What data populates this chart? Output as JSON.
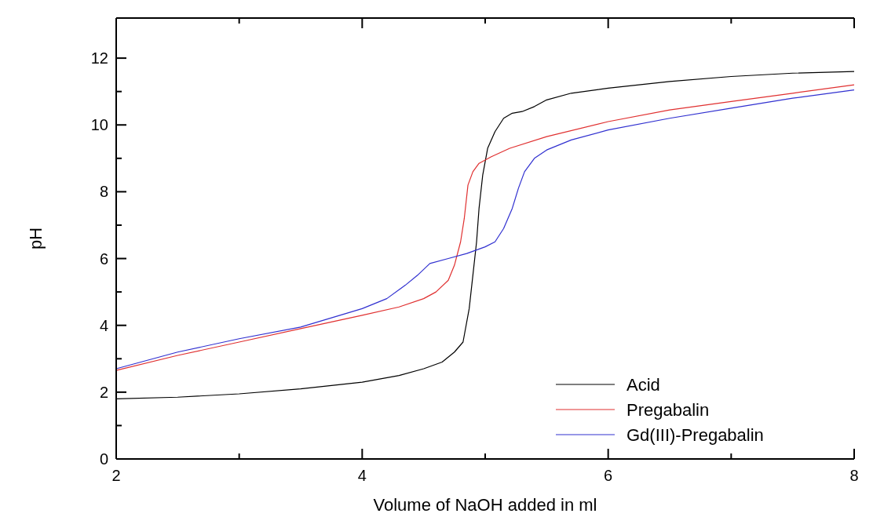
{
  "chart_data": {
    "type": "line",
    "xlabel": "Volume of NaOH added in ml",
    "ylabel": "pH",
    "xlim": [
      2,
      8
    ],
    "ylim": [
      0,
      13.2
    ],
    "xticks": [
      2,
      {
        "value": 3,
        "label": null
      },
      4,
      {
        "value": 5,
        "label": null
      },
      6,
      {
        "value": 7,
        "label": null
      },
      8
    ],
    "yticks": [
      0,
      {
        "value": 1,
        "label": null
      },
      2,
      {
        "value": 3,
        "label": null
      },
      4,
      {
        "value": 5,
        "label": null
      },
      6,
      {
        "value": 7,
        "label": null
      },
      8,
      {
        "value": 9,
        "label": null
      },
      10,
      {
        "value": 11,
        "label": null
      },
      12
    ],
    "grid": false,
    "legend": "bottom right",
    "marker": "none",
    "line_style": "solid",
    "series": [
      {
        "name": "Acid",
        "color": "#000000",
        "x": [
          2,
          2.5,
          3,
          3.5,
          4,
          4.3,
          4.5,
          4.65,
          4.75,
          4.82,
          4.87,
          4.9,
          4.93,
          4.95,
          4.98,
          5.02,
          5.08,
          5.15,
          5.22,
          5.3,
          5.4,
          5.5,
          5.7,
          6,
          6.5,
          7,
          7.5,
          8
        ],
        "values": [
          1.8,
          1.85,
          1.95,
          2.1,
          2.3,
          2.5,
          2.7,
          2.9,
          3.2,
          3.5,
          4.5,
          5.5,
          6.5,
          7.5,
          8.5,
          9.3,
          9.8,
          10.2,
          10.35,
          10.4,
          10.55,
          10.75,
          10.95,
          11.1,
          11.3,
          11.45,
          11.55,
          11.6
        ]
      },
      {
        "name": "Pregabalin",
        "color": "#e03030",
        "x": [
          2,
          2.5,
          3,
          3.5,
          4,
          4.3,
          4.5,
          4.6,
          4.7,
          4.75,
          4.8,
          4.83,
          4.86,
          4.9,
          4.95,
          5.05,
          5.2,
          5.5,
          6,
          6.5,
          7,
          7.5,
          8
        ],
        "values": [
          2.65,
          3.1,
          3.5,
          3.9,
          4.3,
          4.55,
          4.8,
          5,
          5.35,
          5.8,
          6.5,
          7.2,
          8.2,
          8.6,
          8.85,
          9.05,
          9.3,
          9.65,
          10.1,
          10.45,
          10.7,
          10.95,
          11.2
        ]
      },
      {
        "name": "Gd(III)-Pregabalin",
        "color": "#3030d0",
        "x": [
          2,
          2.5,
          3,
          3.5,
          4,
          4.2,
          4.35,
          4.45,
          4.55,
          4.7,
          4.85,
          5,
          5.08,
          5.15,
          5.22,
          5.27,
          5.32,
          5.4,
          5.5,
          5.7,
          6,
          6.5,
          7,
          7.5,
          8
        ],
        "values": [
          2.7,
          3.2,
          3.6,
          3.95,
          4.5,
          4.8,
          5.2,
          5.5,
          5.85,
          6,
          6.15,
          6.35,
          6.5,
          6.9,
          7.5,
          8.1,
          8.6,
          9,
          9.25,
          9.55,
          9.85,
          10.2,
          10.5,
          10.8,
          11.05
        ]
      }
    ]
  }
}
